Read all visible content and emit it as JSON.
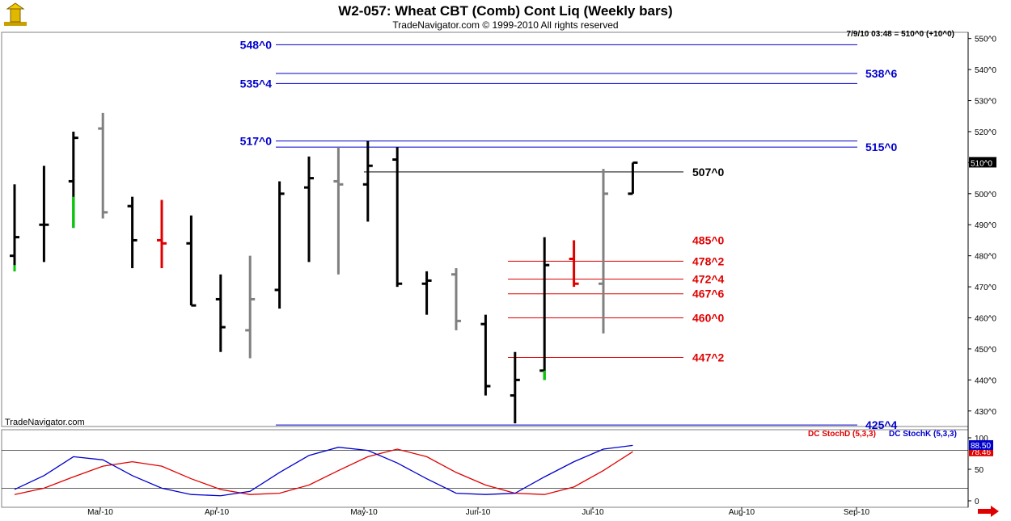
{
  "header": {
    "title": "W2-057:  Wheat CBT (Comb) Cont Liq  (Weekly bars)",
    "subtitle": "TradeNavigator.com © 1999-2010 All rights reserved",
    "timestamp": "7/9/10 03:48 = 510^0 (+10^0)",
    "brand": "TradeNavigator.com"
  },
  "colors": {
    "up_bar": "#000000",
    "gray_bar": "#808080",
    "red_bar": "#e00000",
    "green_tick": "#00cc00",
    "blue_level": "#0000cc",
    "red_level": "#e00000",
    "stoch_d": "#e00000",
    "stoch_k": "#0000cc"
  },
  "chart_data": [
    {
      "type": "ohlc",
      "title": "W2-057:  Wheat CBT (Comb) Cont Liq  (Weekly bars)",
      "y_ticks": [
        "430^0",
        "440^0",
        "450^0",
        "460^0",
        "470^0",
        "480^0",
        "490^0",
        "500^0",
        "510^0",
        "520^0",
        "530^0",
        "540^0",
        "550^0"
      ],
      "ylim": [
        425,
        552
      ],
      "last_price_label": "510^0",
      "x_ticks": [
        "Mar-10",
        "Apr-10",
        "May-10",
        "Jun-10",
        "Jul-10",
        "Aug-10",
        "Sep-10"
      ],
      "bars": [
        {
          "o": 480,
          "h": 503,
          "l": 475,
          "c": 486,
          "color": "black"
        },
        {
          "o": 490,
          "h": 509,
          "l": 478,
          "c": 490,
          "color": "black"
        },
        {
          "o": 504,
          "h": 520,
          "l": 489,
          "c": 518,
          "color": "black"
        },
        {
          "o": 521,
          "h": 526,
          "l": 492,
          "c": 494,
          "color": "gray"
        },
        {
          "o": 496,
          "h": 499,
          "l": 476,
          "c": 485,
          "color": "black"
        },
        {
          "o": 485,
          "h": 498,
          "l": 476,
          "c": 484,
          "color": "red"
        },
        {
          "o": 484,
          "h": 493,
          "l": 464,
          "c": 464,
          "color": "black"
        },
        {
          "o": 466,
          "h": 474,
          "l": 449,
          "c": 457,
          "color": "black"
        },
        {
          "o": 456,
          "h": 480,
          "l": 447,
          "c": 466,
          "color": "gray"
        },
        {
          "o": 469,
          "h": 504,
          "l": 463,
          "c": 500,
          "color": "black"
        },
        {
          "o": 502,
          "h": 512,
          "l": 478,
          "c": 505,
          "color": "black"
        },
        {
          "o": 504,
          "h": 515,
          "l": 474,
          "c": 503,
          "color": "gray"
        },
        {
          "o": 503,
          "h": 517,
          "l": 491,
          "c": 509,
          "color": "black"
        },
        {
          "o": 511,
          "h": 515,
          "l": 470,
          "c": 471,
          "color": "black"
        },
        {
          "o": 471,
          "h": 475,
          "l": 461,
          "c": 472,
          "color": "black"
        },
        {
          "o": 474,
          "h": 476,
          "l": 456,
          "c": 459,
          "color": "gray"
        },
        {
          "o": 458,
          "h": 461,
          "l": 435,
          "c": 438,
          "color": "black"
        },
        {
          "o": 435,
          "h": 449,
          "l": 426,
          "c": 440,
          "color": "black"
        },
        {
          "o": 443,
          "h": 486,
          "l": 440,
          "c": 477,
          "color": "black"
        },
        {
          "o": 479,
          "h": 485,
          "l": 470,
          "c": 471,
          "color": "red"
        },
        {
          "o": 471,
          "h": 508,
          "l": 455,
          "c": 500,
          "color": "gray"
        },
        {
          "o": 500,
          "h": 510,
          "l": 500,
          "c": 510,
          "color": "black"
        }
      ],
      "levels": [
        {
          "label": "548^0",
          "value": 548.0,
          "color": "blue",
          "side": "left"
        },
        {
          "label": "538^6",
          "value": 538.75,
          "color": "blue",
          "side": "right"
        },
        {
          "label": "535^4",
          "value": 535.5,
          "color": "blue",
          "side": "left"
        },
        {
          "label": "517^0",
          "value": 517.0,
          "color": "blue",
          "side": "left"
        },
        {
          "label": "515^0",
          "value": 515.0,
          "color": "blue",
          "side": "right"
        },
        {
          "label": "507^0",
          "value": 507.0,
          "color": "black",
          "side": "mid"
        },
        {
          "label": "485^0",
          "value": 485.0,
          "color": "red",
          "side": "mid",
          "line": false
        },
        {
          "label": "478^2",
          "value": 478.25,
          "color": "red",
          "side": "mid"
        },
        {
          "label": "472^4",
          "value": 472.5,
          "color": "red",
          "side": "mid"
        },
        {
          "label": "467^6",
          "value": 467.75,
          "color": "red",
          "side": "mid"
        },
        {
          "label": "460^0",
          "value": 460.0,
          "color": "red",
          "side": "mid"
        },
        {
          "label": "447^2",
          "value": 447.25,
          "color": "red",
          "side": "mid"
        },
        {
          "label": "425^4",
          "value": 425.5,
          "color": "blue",
          "side": "right"
        }
      ]
    },
    {
      "type": "line",
      "y_ticks": [
        "0",
        "50",
        "100"
      ],
      "ylim": [
        0,
        100
      ],
      "series": [
        {
          "name": "DC StochD (5,3,3)",
          "color": "red",
          "last_label": "78.46",
          "values": [
            10,
            20,
            38,
            55,
            62,
            55,
            35,
            18,
            10,
            12,
            25,
            48,
            70,
            82,
            70,
            45,
            25,
            12,
            10,
            22,
            48,
            78
          ]
        },
        {
          "name": "DC StochK (5,3,3)",
          "color": "blue",
          "last_label": "88.50",
          "values": [
            18,
            40,
            70,
            65,
            40,
            20,
            10,
            8,
            15,
            45,
            72,
            85,
            80,
            60,
            35,
            12,
            10,
            12,
            38,
            62,
            82,
            88
          ]
        }
      ]
    }
  ],
  "navigation": {
    "next_label": "scroll-right"
  }
}
